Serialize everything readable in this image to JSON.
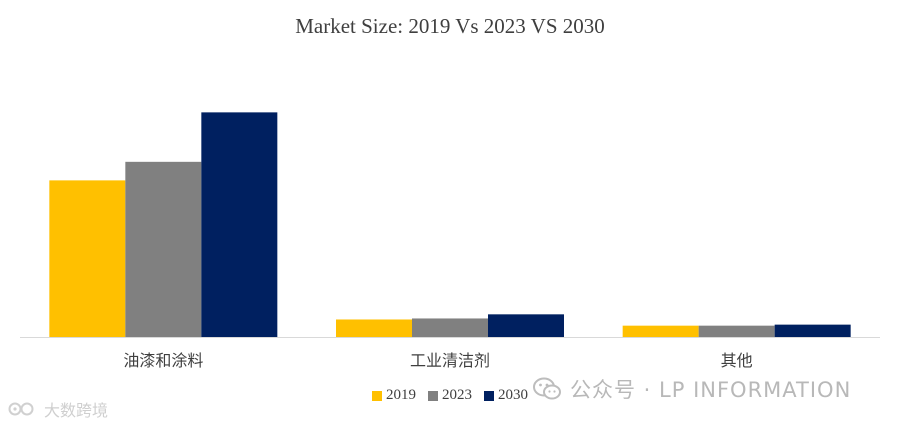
{
  "chart_data": {
    "type": "bar",
    "title": "Market Size: 2019 Vs 2023 VS 2030",
    "categories": [
      "油漆和涂料",
      "工业清洁剂",
      "其他"
    ],
    "series": [
      {
        "name": "2019",
        "color": "#FFC000",
        "values": [
          152,
          17,
          11
        ]
      },
      {
        "name": "2023",
        "color": "#808080",
        "values": [
          170,
          18,
          11
        ]
      },
      {
        "name": "2030",
        "color": "#002060",
        "values": [
          218,
          22,
          12
        ]
      }
    ],
    "ylim": [
      0,
      230
    ],
    "xlabel": "",
    "ylabel": "",
    "grid": false,
    "legend_position": "bottom"
  },
  "watermarks": {
    "wechat_text": "公众号 · LP INFORMATION",
    "left_text": "大数跨境"
  }
}
